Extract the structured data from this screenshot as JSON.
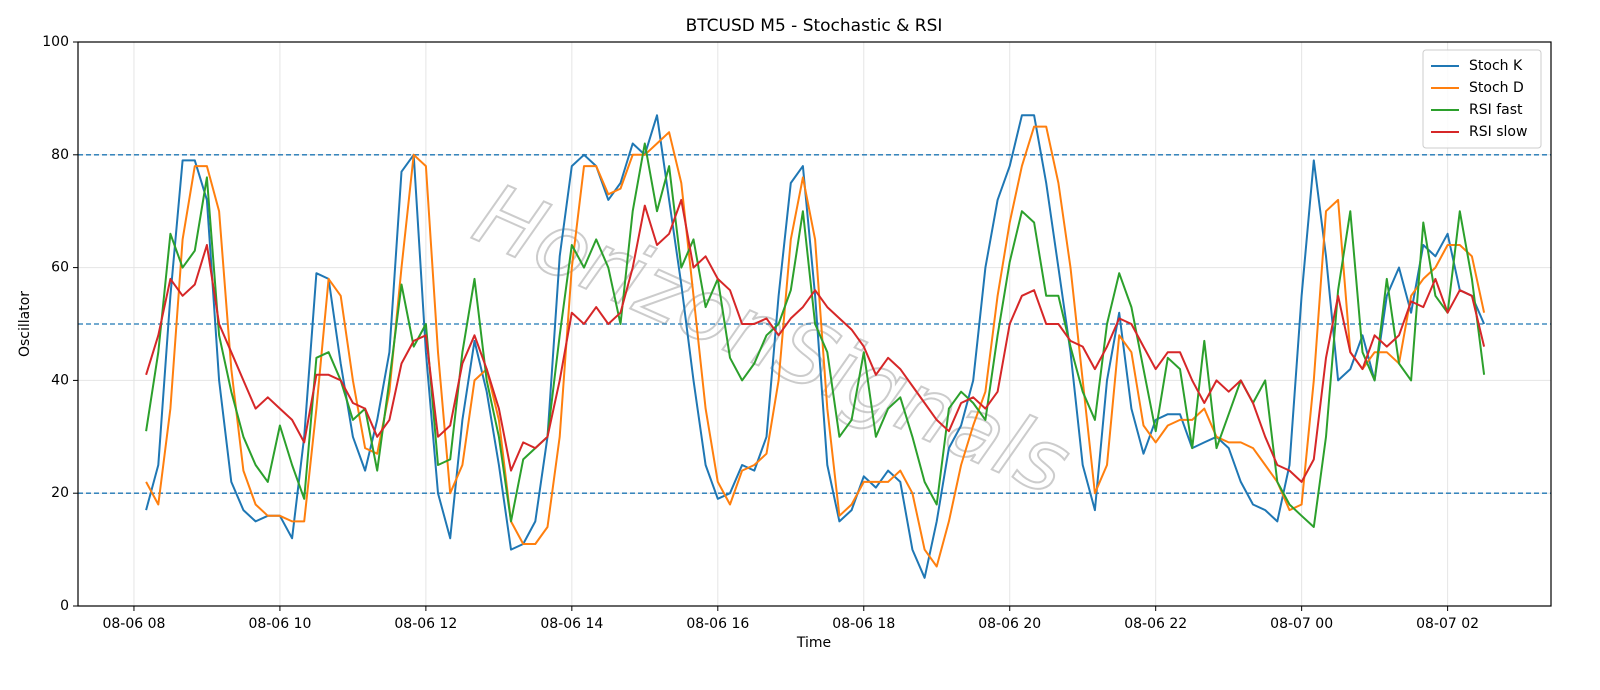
{
  "chart_data": {
    "type": "line",
    "title": "BTCUSD M5 - Stochastic & RSI",
    "xlabel": "Time",
    "ylabel": "Oscillator",
    "watermark": "HorizonSignals",
    "x": [
      "08-06 08:10",
      "08-06 08:20",
      "08-06 08:30",
      "08-06 08:40",
      "08-06 08:50",
      "08-06 09:00",
      "08-06 09:10",
      "08-06 09:20",
      "08-06 09:30",
      "08-06 09:40",
      "08-06 09:50",
      "08-06 10:00",
      "08-06 10:10",
      "08-06 10:20",
      "08-06 10:30",
      "08-06 10:40",
      "08-06 10:50",
      "08-06 11:00",
      "08-06 11:10",
      "08-06 11:20",
      "08-06 11:30",
      "08-06 11:40",
      "08-06 11:50",
      "08-06 12:00",
      "08-06 12:10",
      "08-06 12:20",
      "08-06 12:30",
      "08-06 12:40",
      "08-06 12:50",
      "08-06 13:00",
      "08-06 13:10",
      "08-06 13:20",
      "08-06 13:30",
      "08-06 13:40",
      "08-06 13:50",
      "08-06 14:00",
      "08-06 14:10",
      "08-06 14:20",
      "08-06 14:30",
      "08-06 14:40",
      "08-06 14:50",
      "08-06 15:00",
      "08-06 15:10",
      "08-06 15:20",
      "08-06 15:30",
      "08-06 15:40",
      "08-06 15:50",
      "08-06 16:00",
      "08-06 16:10",
      "08-06 16:20",
      "08-06 16:30",
      "08-06 16:40",
      "08-06 16:50",
      "08-06 17:00",
      "08-06 17:10",
      "08-06 17:20",
      "08-06 17:30",
      "08-06 17:40",
      "08-06 17:50",
      "08-06 18:00",
      "08-06 18:10",
      "08-06 18:20",
      "08-06 18:30",
      "08-06 18:40",
      "08-06 18:50",
      "08-06 19:00",
      "08-06 19:10",
      "08-06 19:20",
      "08-06 19:30",
      "08-06 19:40",
      "08-06 19:50",
      "08-06 20:00",
      "08-06 20:10",
      "08-06 20:20",
      "08-06 20:30",
      "08-06 20:40",
      "08-06 20:50",
      "08-06 21:00",
      "08-06 21:10",
      "08-06 21:20",
      "08-06 21:30",
      "08-06 21:40",
      "08-06 21:50",
      "08-06 22:00",
      "08-06 22:10",
      "08-06 22:20",
      "08-06 22:30",
      "08-06 22:40",
      "08-06 22:50",
      "08-06 23:00",
      "08-06 23:10",
      "08-06 23:20",
      "08-06 23:30",
      "08-06 23:40",
      "08-06 23:50",
      "08-07 00:00",
      "08-07 00:10",
      "08-07 00:20",
      "08-07 00:30",
      "08-07 00:40",
      "08-07 00:50",
      "08-07 01:00",
      "08-07 01:10",
      "08-07 01:20",
      "08-07 01:30",
      "08-07 01:40",
      "08-07 01:50",
      "08-07 02:00",
      "08-07 02:10",
      "08-07 02:20",
      "08-07 02:30"
    ],
    "series": [
      {
        "name": "Stoch K",
        "color": "#1f77b4",
        "values": [
          17,
          25,
          55,
          79,
          79,
          72,
          40,
          22,
          17,
          15,
          16,
          16,
          12,
          30,
          59,
          58,
          43,
          30,
          24,
          33,
          45,
          77,
          80,
          45,
          20,
          12,
          33,
          47,
          38,
          25,
          10,
          11,
          15,
          30,
          62,
          78,
          80,
          78,
          72,
          75,
          82,
          80,
          87,
          72,
          57,
          40,
          25,
          19,
          20,
          25,
          24,
          30,
          55,
          75,
          78,
          55,
          25,
          15,
          17,
          23,
          21,
          24,
          22,
          10,
          5,
          15,
          28,
          32,
          40,
          60,
          72,
          78,
          87,
          87,
          75,
          60,
          45,
          25,
          17,
          40,
          52,
          35,
          27,
          33,
          34,
          34,
          28,
          29,
          30,
          28,
          22,
          18,
          17,
          15,
          25,
          55,
          79,
          62,
          40,
          42,
          48,
          40,
          55,
          60,
          52,
          64,
          62,
          66,
          56,
          55,
          50
        ]
      },
      {
        "name": "Stoch D",
        "color": "#ff7f0e",
        "values": [
          22,
          18,
          35,
          65,
          78,
          78,
          70,
          42,
          24,
          18,
          16,
          16,
          15,
          15,
          35,
          58,
          55,
          40,
          28,
          27,
          38,
          60,
          80,
          78,
          45,
          20,
          25,
          40,
          42,
          33,
          15,
          11,
          11,
          14,
          30,
          60,
          78,
          78,
          73,
          74,
          80,
          80,
          82,
          84,
          75,
          55,
          35,
          22,
          18,
          24,
          25,
          27,
          40,
          65,
          76,
          65,
          35,
          16,
          18,
          22,
          22,
          22,
          24,
          20,
          10,
          7,
          15,
          25,
          32,
          38,
          55,
          68,
          78,
          85,
          85,
          75,
          60,
          40,
          20,
          25,
          48,
          45,
          32,
          29,
          32,
          33,
          33,
          35,
          30,
          29,
          29,
          28,
          25,
          22,
          17,
          18,
          40,
          70,
          72,
          45,
          42,
          45,
          45,
          43,
          55,
          58,
          60,
          64,
          64,
          62,
          52
        ]
      },
      {
        "name": "RSI fast",
        "color": "#2ca02c",
        "values": [
          31,
          45,
          66,
          60,
          63,
          76,
          48,
          38,
          30,
          25,
          22,
          32,
          25,
          19,
          44,
          45,
          40,
          33,
          35,
          24,
          40,
          57,
          46,
          50,
          25,
          26,
          45,
          58,
          40,
          30,
          15,
          26,
          28,
          30,
          48,
          64,
          60,
          65,
          60,
          50,
          70,
          82,
          70,
          78,
          60,
          65,
          53,
          58,
          44,
          40,
          43,
          48,
          50,
          56,
          70,
          50,
          45,
          30,
          33,
          45,
          30,
          35,
          37,
          30,
          22,
          18,
          35,
          38,
          36,
          33,
          48,
          61,
          70,
          68,
          55,
          55,
          46,
          38,
          33,
          50,
          59,
          53,
          42,
          31,
          44,
          42,
          28,
          47,
          28,
          34,
          40,
          36,
          40,
          22,
          18,
          16,
          14,
          30,
          56,
          70,
          45,
          40,
          58,
          43,
          40,
          68,
          55,
          52,
          70,
          58,
          41
        ]
      },
      {
        "name": "RSI slow",
        "color": "#d62728",
        "values": [
          41,
          48,
          58,
          55,
          57,
          64,
          50,
          45,
          40,
          35,
          37,
          35,
          33,
          29,
          41,
          41,
          40,
          36,
          35,
          30,
          33,
          43,
          47,
          48,
          30,
          32,
          43,
          48,
          42,
          35,
          24,
          29,
          28,
          30,
          40,
          52,
          50,
          53,
          50,
          52,
          60,
          71,
          64,
          66,
          72,
          60,
          62,
          58,
          56,
          50,
          50,
          51,
          48,
          51,
          53,
          56,
          53,
          51,
          49,
          46,
          41,
          44,
          42,
          39,
          36,
          33,
          31,
          36,
          37,
          35,
          38,
          50,
          55,
          56,
          50,
          50,
          47,
          46,
          42,
          46,
          51,
          50,
          46,
          42,
          45,
          45,
          40,
          36,
          40,
          38,
          40,
          36,
          30,
          25,
          24,
          22,
          26,
          44,
          55,
          45,
          42,
          48,
          46,
          48,
          54,
          53,
          58,
          52,
          56,
          55,
          46
        ]
      }
    ],
    "hlines": [
      20,
      50,
      80
    ],
    "hline_color": "#1f77b4",
    "xlim": [
      "08-06 07:14",
      "08-07 03:25"
    ],
    "xticks": [
      {
        "value": "08-06 08:00",
        "label": "08-06 08"
      },
      {
        "value": "08-06 10:00",
        "label": "08-06 10"
      },
      {
        "value": "08-06 12:00",
        "label": "08-06 12"
      },
      {
        "value": "08-06 14:00",
        "label": "08-06 14"
      },
      {
        "value": "08-06 16:00",
        "label": "08-06 16"
      },
      {
        "value": "08-06 18:00",
        "label": "08-06 18"
      },
      {
        "value": "08-06 20:00",
        "label": "08-06 20"
      },
      {
        "value": "08-06 22:00",
        "label": "08-06 22"
      },
      {
        "value": "08-07 00:00",
        "label": "08-07 00"
      },
      {
        "value": "08-07 02:00",
        "label": "08-07 02"
      }
    ],
    "ylim": [
      0,
      100
    ],
    "yticks": [
      0,
      20,
      40,
      60,
      80,
      100
    ],
    "grid": true,
    "legend": "upper right"
  }
}
